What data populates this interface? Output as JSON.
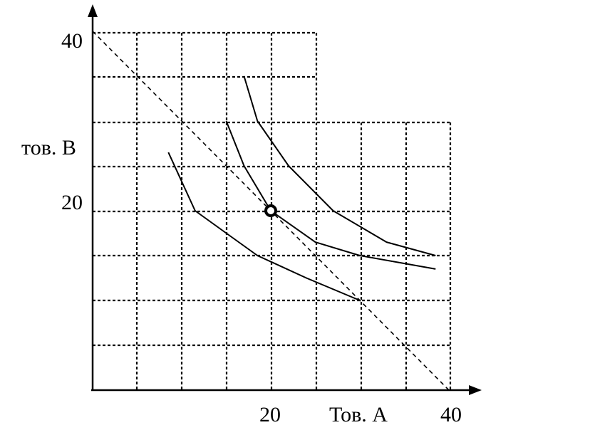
{
  "labels": {
    "y_tick_top": "40",
    "y_tick_mid": "20",
    "x_tick_mid": "20",
    "x_tick_right": "40",
    "y_axis": "тов. В",
    "x_axis": "Тов. А"
  },
  "chart_data": {
    "type": "line",
    "xlabel": "Тов. А",
    "ylabel": "тов. В",
    "x_ticks": [
      20,
      40
    ],
    "y_ticks": [
      20,
      40
    ],
    "xlim": [
      0,
      40
    ],
    "ylim": [
      0,
      40
    ],
    "grid": true,
    "series": [
      {
        "role": "budget-line",
        "style": "dashed",
        "points": [
          [
            0,
            40
          ],
          [
            40,
            0
          ]
        ]
      },
      {
        "role": "indifference-curve",
        "points": [
          [
            8.5,
            26.5
          ],
          [
            11.5,
            20
          ],
          [
            15,
            17.5
          ],
          [
            18.5,
            15
          ],
          [
            24,
            12.5
          ],
          [
            30,
            10
          ]
        ]
      },
      {
        "role": "indifference-curve",
        "points": [
          [
            15,
            30
          ],
          [
            17,
            25
          ],
          [
            20,
            20
          ],
          [
            25,
            16.5
          ],
          [
            30,
            15
          ],
          [
            38.5,
            13.5
          ]
        ]
      },
      {
        "role": "indifference-curve",
        "points": [
          [
            17,
            35
          ],
          [
            18.5,
            30
          ],
          [
            22,
            25
          ],
          [
            27,
            20
          ],
          [
            33,
            16.5
          ],
          [
            38.5,
            15
          ]
        ]
      }
    ],
    "markers": [
      {
        "role": "equilibrium-point",
        "x": 20,
        "y": 20
      }
    ]
  }
}
